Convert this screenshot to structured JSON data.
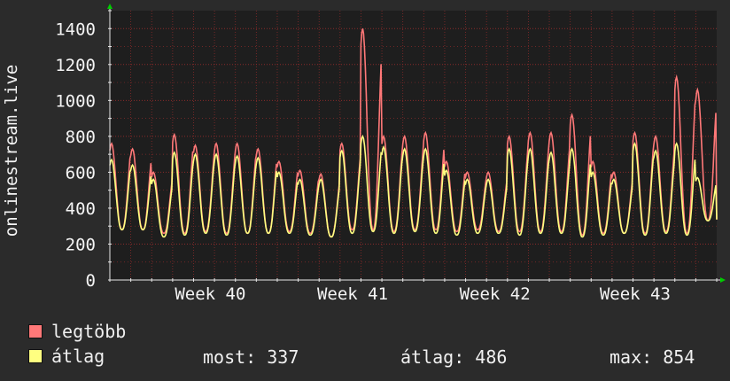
{
  "chart_data": {
    "type": "line",
    "ylabel": "onlinestream.live",
    "ylim": [
      0,
      1500
    ],
    "yticks": [
      0,
      200,
      400,
      600,
      800,
      1000,
      1200,
      1400
    ],
    "x_tick_labels": [
      "Week 40",
      "Week 41",
      "Week 42",
      "Week 43"
    ],
    "grid": true,
    "background": "#1e1e1e",
    "grid_color": "#8a2a2a",
    "axis_arrow_color": "#00cc00",
    "days": 29,
    "series": [
      {
        "name": "legtöbb",
        "color": "#ff7878",
        "daily_peaks": [
          760,
          730,
          600,
          810,
          750,
          760,
          760,
          730,
          660,
          610,
          590,
          760,
          1400,
          800,
          800,
          820,
          660,
          600,
          600,
          800,
          820,
          820,
          920,
          660,
          600,
          820,
          800,
          1130,
          1060
        ],
        "daily_troughs": [
          280,
          280,
          260,
          260,
          270,
          260,
          260,
          260,
          270,
          260,
          240,
          280,
          280,
          270,
          280,
          280,
          270,
          280,
          270,
          270,
          270,
          270,
          250,
          260,
          260,
          260,
          270,
          260,
          330
        ]
      },
      {
        "name": "átlag",
        "color": "#ffff80",
        "daily_peaks": [
          670,
          640,
          560,
          710,
          700,
          700,
          690,
          680,
          600,
          560,
          560,
          720,
          800,
          740,
          730,
          730,
          610,
          560,
          560,
          730,
          730,
          710,
          730,
          600,
          560,
          760,
          720,
          760,
          570
        ],
        "daily_troughs": [
          280,
          280,
          240,
          250,
          260,
          250,
          260,
          260,
          260,
          250,
          240,
          260,
          270,
          260,
          270,
          260,
          250,
          260,
          260,
          250,
          260,
          260,
          240,
          250,
          260,
          250,
          260,
          250,
          330
        ]
      }
    ]
  },
  "legend": {
    "items": [
      {
        "label": "legtöbb",
        "color": "#ff7878"
      },
      {
        "label": "átlag",
        "color": "#ffff80"
      }
    ],
    "stats": {
      "current": "most: 337",
      "average": "átlag: 486",
      "max": "max: 854"
    }
  }
}
